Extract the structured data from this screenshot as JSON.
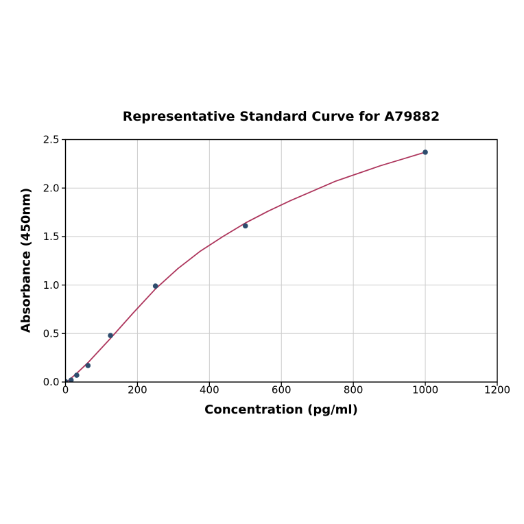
{
  "chart_data": {
    "type": "scatter",
    "title": "Representative Standard Curve for A79882",
    "xlabel": "Concentration (pg/ml)",
    "ylabel": "Absorbance (450nm)",
    "xlim": [
      0,
      1200
    ],
    "ylim": [
      0,
      2.5
    ],
    "grid": true,
    "legend": "none",
    "x_ticks": [
      0,
      200,
      400,
      600,
      800,
      1000,
      1200
    ],
    "x_tick_labels": [
      "0",
      "200",
      "400",
      "600",
      "800",
      "1000",
      "1200"
    ],
    "y_ticks": [
      0.0,
      0.5,
      1.0,
      1.5,
      2.0,
      2.5
    ],
    "y_tick_labels": [
      "0.0",
      "0.5",
      "1.0",
      "1.5",
      "2.0",
      "2.5"
    ],
    "points": [
      [
        0,
        0.005
      ],
      [
        15.6,
        0.02
      ],
      [
        31.2,
        0.07
      ],
      [
        62.5,
        0.17
      ],
      [
        125,
        0.48
      ],
      [
        250,
        0.99
      ],
      [
        500,
        1.61
      ],
      [
        1000,
        2.37
      ]
    ],
    "fit_curve_points": [
      [
        0,
        -0.01
      ],
      [
        31.2,
        0.09
      ],
      [
        62.5,
        0.2
      ],
      [
        125,
        0.45
      ],
      [
        187.5,
        0.71
      ],
      [
        250,
        0.96
      ],
      [
        312.5,
        1.17
      ],
      [
        375,
        1.35
      ],
      [
        437.5,
        1.5
      ],
      [
        500,
        1.64
      ],
      [
        562.5,
        1.76
      ],
      [
        625,
        1.87
      ],
      [
        687.5,
        1.97
      ],
      [
        750,
        2.07
      ],
      [
        812.5,
        2.15
      ],
      [
        875,
        2.23
      ],
      [
        937.5,
        2.3
      ],
      [
        1000,
        2.37
      ]
    ],
    "colors": {
      "curve": "#ad355c",
      "marker": "#2e4d6e",
      "grid": "#cccccc",
      "axis": "#000000",
      "background": "#ffffff"
    }
  }
}
